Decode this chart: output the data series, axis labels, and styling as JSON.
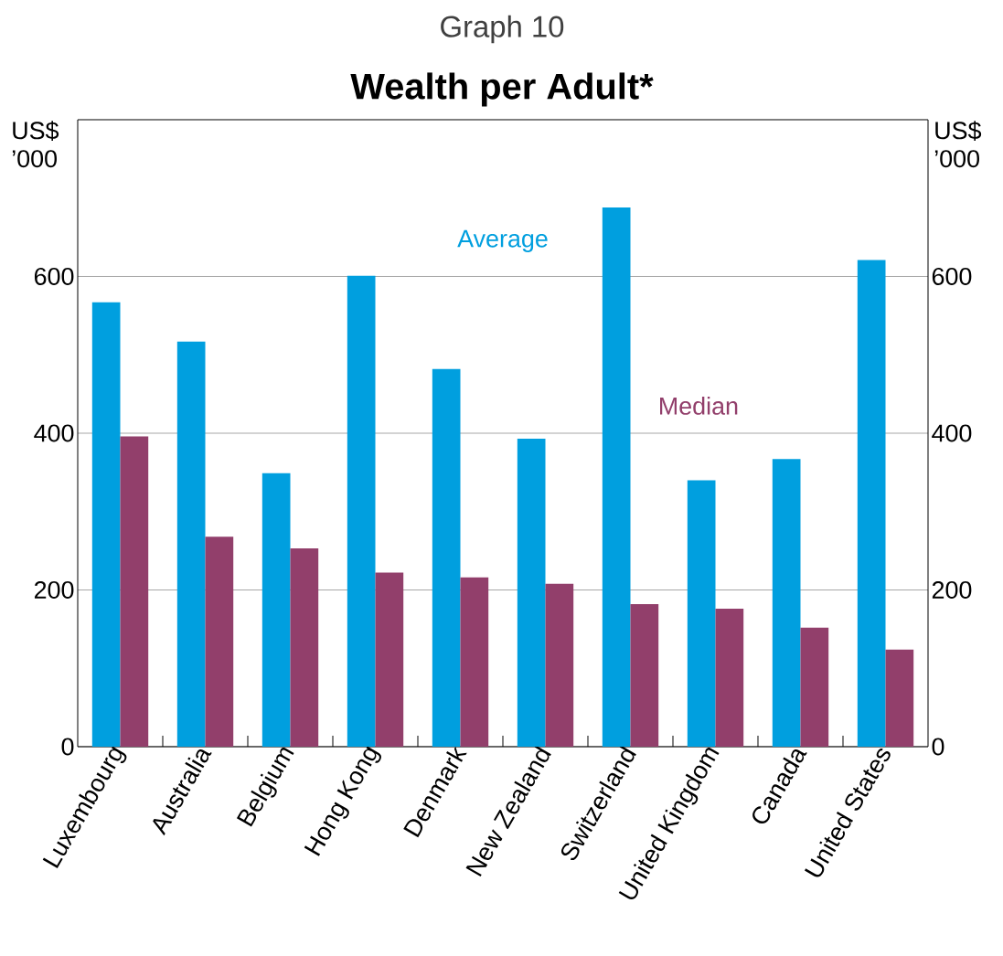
{
  "chart_data": {
    "type": "bar",
    "subtitle": "Graph 10",
    "title": "Wealth per Adult*",
    "ylabel": "US$ ’000",
    "y2label": "US$ ’000",
    "categories": [
      "Luxembourg",
      "Australia",
      "Belgium",
      "Hong Kong",
      "Denmark",
      "New Zealand",
      "Switzerland",
      "United Kingdom",
      "Canada",
      "United States"
    ],
    "series": [
      {
        "name": "Average",
        "color": "#009fdf",
        "values": [
          567,
          517,
          349,
          601,
          482,
          393,
          688,
          340,
          367,
          621
        ]
      },
      {
        "name": "Median",
        "color": "#923f6b",
        "values": [
          396,
          268,
          253,
          222,
          216,
          208,
          182,
          176,
          152,
          124
        ]
      }
    ],
    "ylim": [
      0,
      800
    ],
    "yticks": [
      0,
      200,
      400,
      600
    ],
    "y2lim": [
      0,
      800
    ],
    "y2ticks": [
      0,
      200,
      400,
      600
    ],
    "grid": "y"
  }
}
